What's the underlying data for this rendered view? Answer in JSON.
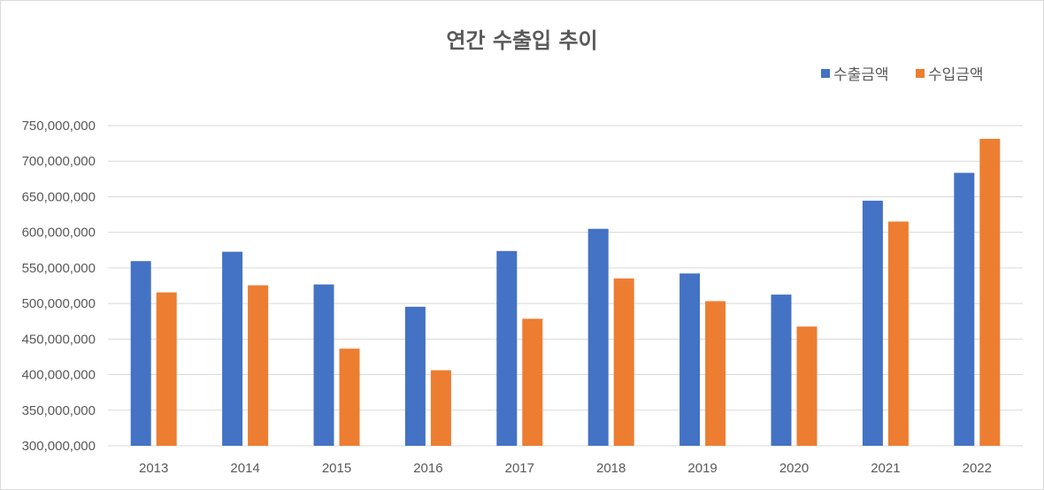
{
  "chart_data": {
    "type": "bar",
    "title": "연간 수출입 추이",
    "categories": [
      "2013",
      "2014",
      "2015",
      "2016",
      "2017",
      "2018",
      "2019",
      "2020",
      "2021",
      "2022"
    ],
    "series": [
      {
        "name": "수출금액",
        "color": "#4472c4",
        "values": [
          559600000,
          572700000,
          526800000,
          495400000,
          573700000,
          604900000,
          542200000,
          512500000,
          644400000,
          683600000
        ]
      },
      {
        "name": "수입금액",
        "color": "#ed7d31",
        "values": [
          515600000,
          525500000,
          436500000,
          406200000,
          478500000,
          535200000,
          503300000,
          467600000,
          615100000,
          731400000
        ]
      }
    ],
    "ylim": [
      300000000,
      750000000
    ],
    "yticks": [
      300000000,
      350000000,
      400000000,
      450000000,
      500000000,
      550000000,
      600000000,
      650000000,
      700000000,
      750000000
    ],
    "ytick_labels": [
      "300,000,000",
      "350,000,000",
      "400,000,000",
      "450,000,000",
      "500,000,000",
      "550,000,000",
      "600,000,000",
      "650,000,000",
      "700,000,000",
      "750,000,000"
    ],
    "grid": true,
    "legend_position": "top-right",
    "gridline_color": "#d9d9d9",
    "text_color": "#595959"
  }
}
